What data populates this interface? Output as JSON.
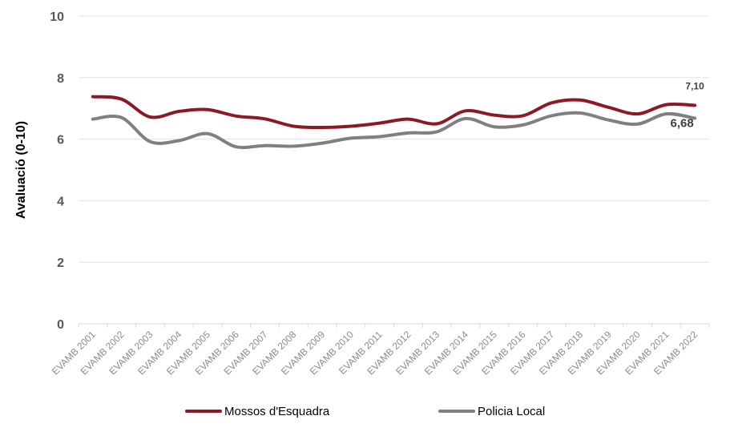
{
  "chart_data": {
    "type": "line",
    "ylabel": "Avaluació (0-10)",
    "xlabel": "",
    "ylim": [
      0,
      10
    ],
    "yticks": [
      "0",
      "2",
      "4",
      "6",
      "8",
      "10"
    ],
    "grid": true,
    "legend_position": "bottom",
    "categories": [
      "EVAMB 2001",
      "EVAMB 2002",
      "EVAMB 2003",
      "EVAMB 2004",
      "EVAMB 2005",
      "EVAMB 2006",
      "EVAMB 2007",
      "EVAMB 2008",
      "EVAMB 2009",
      "EVAMB 2010",
      "EVAMB 2011",
      "EVAMB 2012",
      "EVAMB 2013",
      "EVAMB 2014",
      "EVAMB 2015",
      "EVAMB 2016",
      "EVAMB 2017",
      "EVAMB 2018",
      "EVAMB 2019",
      "EVAMB 2020",
      "EVAMB 2021",
      "EVAMB 2022"
    ],
    "series": [
      {
        "name": "Mossos d'Esquadra",
        "color": "#8b1a24",
        "values": [
          7.38,
          7.3,
          6.72,
          6.9,
          6.96,
          6.75,
          6.66,
          6.42,
          6.38,
          6.42,
          6.52,
          6.65,
          6.5,
          6.92,
          6.78,
          6.76,
          7.18,
          7.27,
          7.03,
          6.82,
          7.12,
          7.1
        ],
        "end_label": "7,10"
      },
      {
        "name": "Policia Local",
        "color": "#808080",
        "values": [
          6.65,
          6.7,
          5.92,
          5.95,
          6.18,
          5.75,
          5.79,
          5.77,
          5.87,
          6.03,
          6.08,
          6.2,
          6.24,
          6.67,
          6.4,
          6.46,
          6.76,
          6.85,
          6.62,
          6.49,
          6.82,
          6.68
        ],
        "end_label": "6,68"
      }
    ]
  }
}
